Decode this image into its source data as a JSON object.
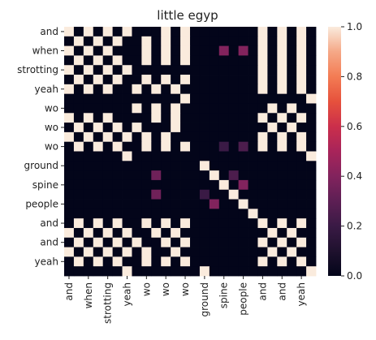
{
  "chart_data": {
    "type": "heatmap",
    "title": "little egyp",
    "xlabel": "",
    "ylabel": "",
    "labels": [
      "and",
      "when",
      "strotting",
      "yeah",
      "wo",
      "wo",
      "wo",
      "ground",
      "spine",
      "people",
      "and",
      "and",
      "yeah"
    ],
    "x_tick_labels": [
      "and",
      "when",
      "strotting",
      "yeah",
      "wo",
      "wo",
      "wo",
      "ground",
      "spine",
      "people",
      "and",
      "and",
      "yeah"
    ],
    "y_tick_labels": [
      "and",
      "when",
      "strotting",
      "yeah",
      "wo",
      "wo",
      "wo",
      "ground",
      "spine",
      "people",
      "and",
      "and",
      "yeah"
    ],
    "tokens": [
      "and",
      "",
      "when",
      "",
      "strotting",
      "",
      "yeah",
      "",
      "wo",
      "",
      "wo",
      "",
      "wo",
      "",
      "ground",
      "",
      "spine",
      "",
      "people",
      "",
      "and",
      "",
      "and",
      "",
      "yeah",
      ""
    ],
    "matrix": [
      [
        1,
        0,
        1,
        0,
        1,
        0,
        1,
        0,
        0,
        0,
        1,
        0,
        1,
        0,
        0,
        0,
        0,
        0,
        0,
        0,
        1,
        0,
        1,
        0,
        1,
        0
      ],
      [
        0,
        1,
        0,
        1,
        0,
        1,
        0,
        0,
        1,
        0,
        1,
        0,
        1,
        0,
        0,
        0,
        0,
        0,
        0,
        0,
        1,
        0,
        1,
        0,
        1,
        0
      ],
      [
        1,
        0,
        1,
        0,
        1,
        0,
        0,
        0,
        1,
        0,
        1,
        0,
        1,
        0,
        0,
        0,
        0.4,
        0,
        0.4,
        0,
        1,
        0,
        1,
        0,
        1,
        0
      ],
      [
        0,
        1,
        0,
        1,
        0,
        1,
        0,
        0,
        1,
        0,
        1,
        0,
        1,
        0,
        0,
        0,
        0,
        0,
        0,
        0,
        1,
        0,
        1,
        0,
        1,
        0
      ],
      [
        1,
        0,
        1,
        0,
        1,
        0,
        1,
        0,
        0,
        0,
        0,
        0,
        0,
        0,
        0,
        0,
        0,
        0,
        0,
        0,
        1,
        0,
        1,
        0,
        1,
        0
      ],
      [
        0,
        1,
        0,
        1,
        0,
        1,
        0,
        0,
        1,
        0,
        1,
        0,
        1,
        0,
        0,
        0,
        0,
        0,
        0,
        0,
        1,
        0,
        1,
        0,
        1,
        0
      ],
      [
        1,
        0,
        1,
        0,
        1,
        0,
        0,
        1,
        0,
        1,
        0,
        1,
        0,
        0,
        0,
        0,
        0,
        0,
        0,
        0,
        1,
        0,
        1,
        0,
        1,
        0
      ],
      [
        0,
        0,
        0,
        0,
        0,
        0,
        0,
        0,
        0,
        0,
        0,
        0,
        1,
        0,
        0,
        0,
        0,
        0,
        0,
        0,
        0,
        0,
        0,
        0,
        0,
        1
      ],
      [
        0,
        0,
        0,
        0,
        0,
        0,
        0,
        1,
        0,
        1,
        0,
        1,
        0,
        0,
        0,
        0,
        0,
        0,
        0,
        0,
        0,
        1,
        0,
        1,
        0,
        0
      ],
      [
        1,
        0,
        1,
        0,
        1,
        0,
        0,
        0,
        0,
        1,
        0,
        1,
        0,
        0,
        0,
        0,
        0,
        0,
        0,
        0,
        1,
        0,
        1,
        0,
        1,
        0
      ],
      [
        0,
        1,
        0,
        1,
        0,
        1,
        0,
        1,
        0,
        0,
        0,
        1,
        0,
        0,
        0,
        0,
        0,
        0,
        0,
        0,
        0,
        1,
        0,
        1,
        0,
        0
      ],
      [
        1,
        0,
        1,
        0,
        1,
        0,
        1,
        0,
        1,
        0,
        1,
        0,
        0,
        0,
        0,
        0,
        0,
        0,
        0,
        0,
        1,
        0,
        1,
        0,
        1,
        0
      ],
      [
        0,
        1,
        0,
        1,
        0,
        1,
        0,
        0,
        1,
        0,
        1,
        0,
        1,
        0,
        0,
        0,
        0.2,
        0,
        0.25,
        0,
        1,
        0,
        1,
        0,
        1,
        0
      ],
      [
        0,
        0,
        0,
        0,
        0,
        0,
        1,
        0,
        0,
        0,
        0,
        0,
        0,
        0,
        0,
        0,
        0,
        0,
        0,
        0,
        0,
        0,
        0,
        0,
        0,
        1
      ],
      [
        0,
        0,
        0,
        0,
        0,
        0,
        0,
        0,
        0,
        0,
        0,
        0,
        0,
        0,
        1,
        0,
        0,
        0,
        0,
        0,
        0,
        0,
        0,
        0,
        0,
        0
      ],
      [
        0,
        0,
        0,
        0,
        0,
        0,
        0,
        0,
        0,
        0.35,
        0,
        0,
        0,
        0,
        0,
        1,
        0,
        0.25,
        0,
        0,
        0,
        0,
        0,
        0,
        0,
        0
      ],
      [
        0,
        0,
        0,
        0,
        0,
        0,
        0,
        0,
        0,
        0,
        0,
        0,
        0,
        0,
        0,
        0,
        1,
        0,
        0.4,
        0,
        0,
        0,
        0,
        0,
        0,
        0
      ],
      [
        0,
        0,
        0,
        0,
        0,
        0,
        0,
        0,
        0,
        0.35,
        0,
        0,
        0,
        0,
        0.2,
        0,
        0,
        1,
        0,
        0,
        0,
        0,
        0,
        0,
        0,
        0
      ],
      [
        0,
        0,
        0,
        0,
        0,
        0,
        0,
        0,
        0,
        0,
        0,
        0,
        0,
        0,
        0,
        0.4,
        0,
        0,
        1,
        0,
        0,
        0,
        0,
        0,
        0,
        0
      ],
      [
        0,
        0,
        0,
        0,
        0,
        0,
        0,
        0,
        0,
        0,
        0,
        0,
        0,
        0,
        0,
        0,
        0,
        0,
        0,
        1,
        0,
        0,
        0,
        0,
        0,
        0
      ],
      [
        0,
        1,
        0,
        1,
        0,
        1,
        0,
        0,
        1,
        0,
        1,
        0,
        1,
        0,
        0,
        0,
        0,
        0,
        0,
        0,
        1,
        0,
        1,
        0,
        1,
        0
      ],
      [
        1,
        0,
        1,
        0,
        1,
        0,
        1,
        0,
        0,
        1,
        0,
        1,
        0,
        0,
        0,
        0,
        0,
        0,
        0,
        0,
        0,
        1,
        0,
        1,
        0,
        0
      ],
      [
        0,
        1,
        0,
        1,
        0,
        1,
        0,
        1,
        0,
        0,
        1,
        0,
        1,
        0,
        0,
        0,
        0,
        0,
        0,
        0,
        1,
        0,
        1,
        0,
        1,
        0
      ],
      [
        1,
        0,
        1,
        0,
        1,
        0,
        1,
        0,
        1,
        0,
        0,
        1,
        0,
        0,
        0,
        0,
        0,
        0,
        0,
        0,
        0,
        1,
        0,
        1,
        0,
        0
      ],
      [
        0,
        1,
        0,
        1,
        0,
        1,
        0,
        0,
        1,
        0,
        1,
        0,
        1,
        0,
        0,
        0,
        0,
        0,
        0,
        0,
        1,
        0,
        1,
        0,
        1,
        0
      ],
      [
        0,
        0,
        0,
        0,
        0,
        0,
        1,
        0,
        0,
        0,
        0,
        0,
        0,
        0,
        1,
        0,
        0,
        0,
        0,
        0,
        0,
        0,
        0,
        0,
        0,
        1
      ]
    ],
    "colorbar": {
      "min": 0.0,
      "max": 1.0,
      "ticks": [
        "0.0",
        "0.2",
        "0.4",
        "0.6",
        "0.8",
        "1.0"
      ],
      "colormap": "rocket"
    },
    "grid": false,
    "legend": "colorbar-right"
  }
}
